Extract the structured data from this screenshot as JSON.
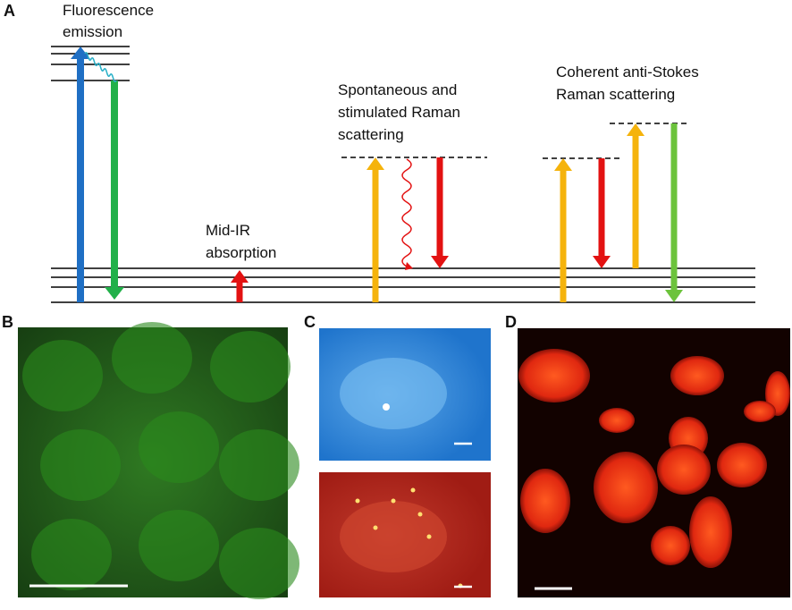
{
  "panels": {
    "a": "A",
    "b": "B",
    "c": "C",
    "d": "D"
  },
  "labels": {
    "fluorescence": [
      "Fluorescence",
      "emission"
    ],
    "mid_ir": [
      "Mid-IR",
      "absorption"
    ],
    "raman": [
      "Spontaneous and",
      "stimulated Raman",
      "scattering"
    ],
    "cars": [
      "Coherent anti-Stokes",
      "Raman scattering"
    ]
  }
}
